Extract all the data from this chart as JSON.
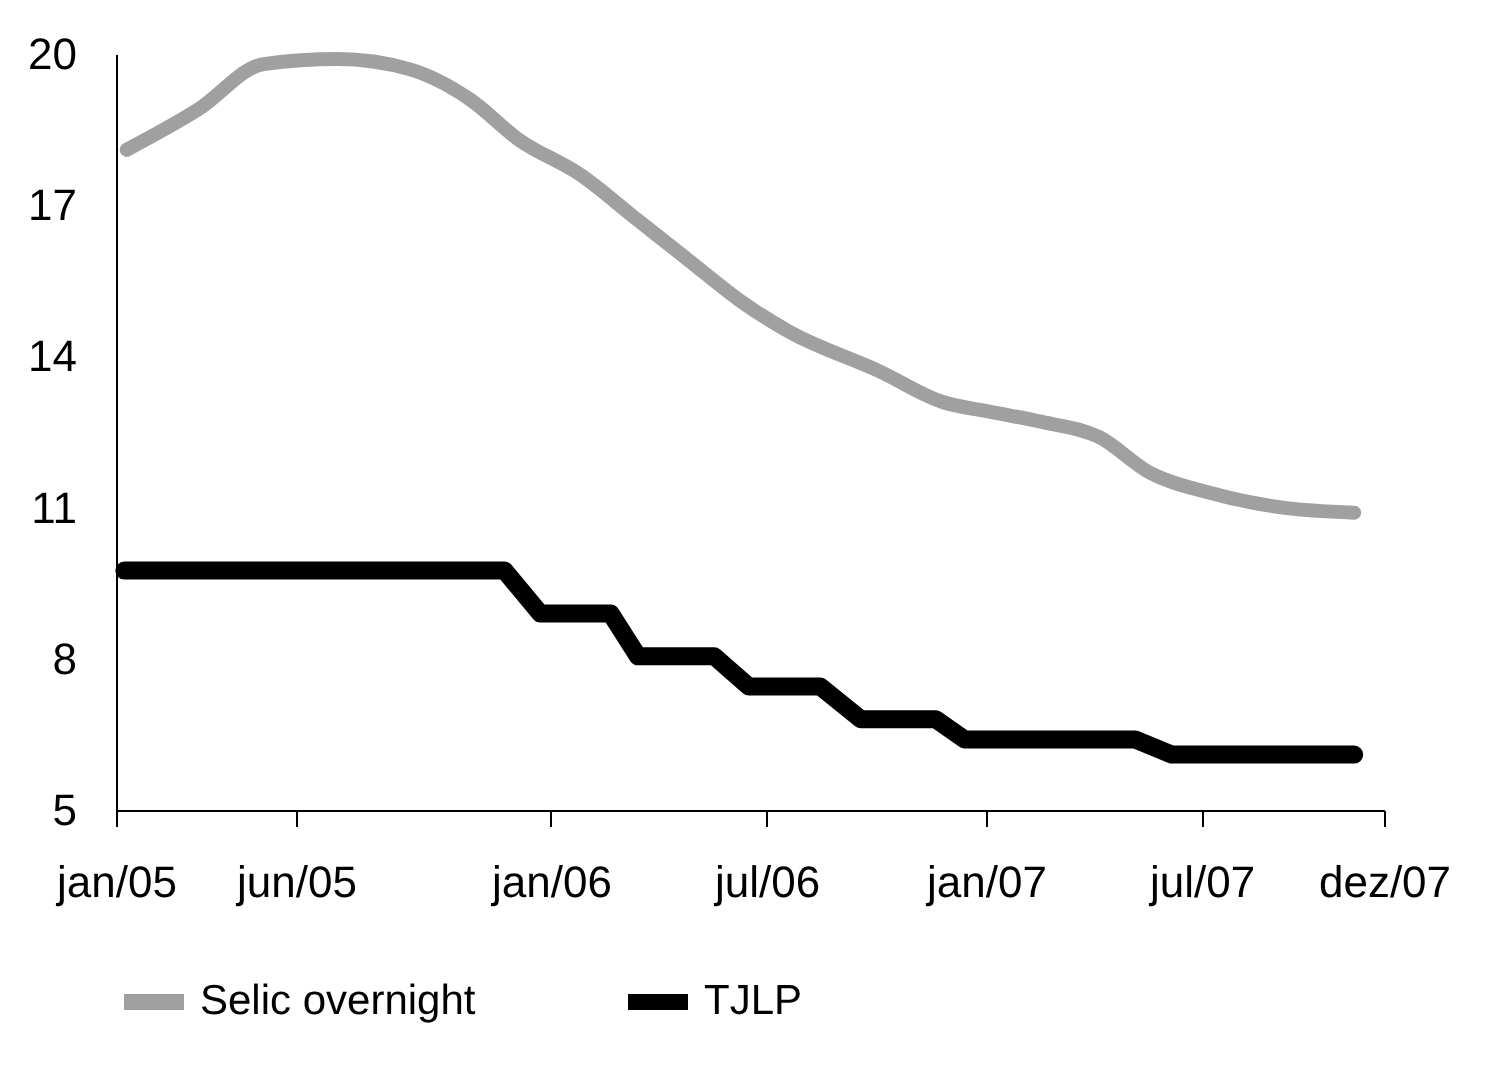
{
  "chart_data": {
    "type": "line",
    "xlim": [
      "2005-01-01",
      "2007-12-01"
    ],
    "xticks": [
      {
        "value": "2005-01",
        "label": "jan/05"
      },
      {
        "value": "2005-06",
        "label": "jun/05"
      },
      {
        "value": "2006-01",
        "label": "jan/06"
      },
      {
        "value": "2006-07",
        "label": "jul/06"
      },
      {
        "value": "2007-01",
        "label": "jan/07"
      },
      {
        "value": "2007-07",
        "label": "jul/07"
      },
      {
        "value": "2007-12",
        "label": "dez/07"
      }
    ],
    "ylim": [
      5,
      20
    ],
    "yticks": [
      5,
      8,
      11,
      14,
      17,
      20
    ],
    "grid": false,
    "legend": "bottom",
    "line_style": "solid",
    "series": [
      {
        "name": "Selic overnight",
        "color": "#a0a0a0",
        "x": [
          "2005-01-10",
          "2005-03-11",
          "2005-05-05",
          "2005-07-06",
          "2005-09-04",
          "2005-10-25",
          "2005-12-05",
          "2006-01-26",
          "2006-03-15",
          "2006-04-27",
          "2006-06-09",
          "2006-07-19",
          "2006-10-04",
          "2006-11-25",
          "2007-01-05",
          "2007-02-17",
          "2007-04-06",
          "2007-05-18",
          "2007-07-07",
          "2007-09-07",
          "2007-11-06"
        ],
        "values": [
          18.1,
          18.9,
          19.8,
          19.9,
          19.7,
          19.1,
          18.3,
          17.6,
          16.7,
          15.9,
          15.1,
          14.5,
          13.7,
          13.1,
          12.9,
          12.7,
          12.4,
          11.7,
          11.3,
          11.0,
          10.9
        ]
      },
      {
        "name": "TJLP",
        "color": "#000000",
        "x": [
          "2005-01-08",
          "2005-11-23",
          "2005-12-23",
          "2006-02-20",
          "2006-03-15",
          "2006-05-18",
          "2006-06-16",
          "2006-08-15",
          "2006-09-18",
          "2006-11-20",
          "2006-12-14",
          "2007-05-06",
          "2007-06-06",
          "2007-11-06"
        ],
        "values": [
          9.75,
          9.75,
          8.9,
          8.9,
          8.05,
          8.05,
          7.45,
          7.45,
          6.8,
          6.8,
          6.4,
          6.4,
          6.1,
          6.1
        ]
      }
    ]
  }
}
